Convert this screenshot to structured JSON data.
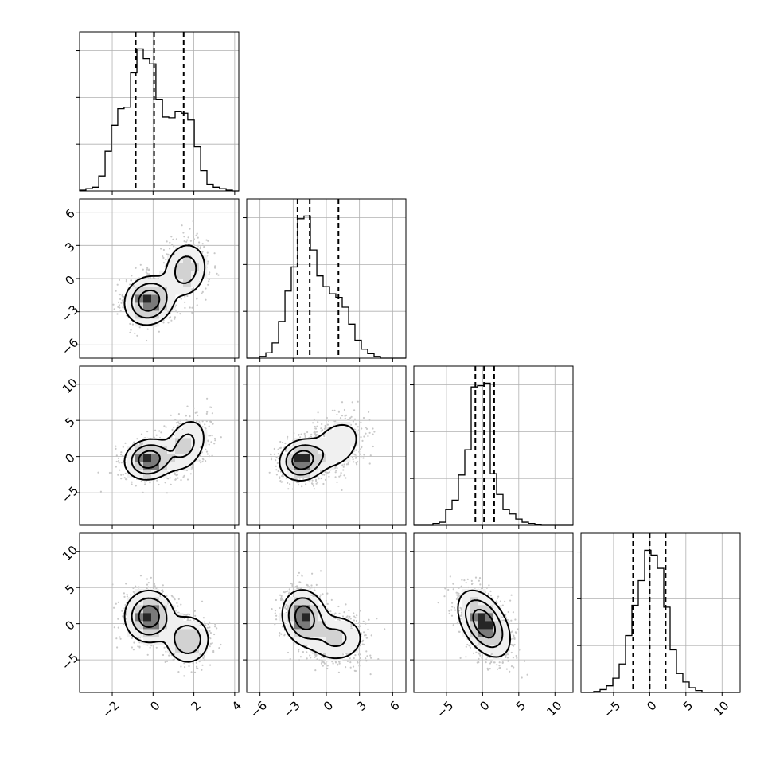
{
  "chart_data": {
    "type": "corner",
    "title": "",
    "parameters": [
      {
        "range": [
          -3.6,
          4.2
        ],
        "ticks": [
          -2,
          0,
          2,
          4
        ],
        "tick_labels": [
          "−2",
          "0",
          "2",
          "4"
        ]
      },
      {
        "range": [
          -7.2,
          7.2
        ],
        "ticks": [
          -6,
          -3,
          0,
          3,
          6
        ],
        "tick_labels": [
          "−6",
          "−3",
          "0",
          "3",
          "6"
        ]
      },
      {
        "range": [
          -9.5,
          12.5
        ],
        "ticks": [
          -5,
          0,
          5,
          10
        ],
        "tick_labels": [
          "−5",
          "0",
          "5",
          "10"
        ]
      },
      {
        "range": [
          -9.5,
          12.5
        ],
        "ticks": [
          -5,
          0,
          5,
          10
        ],
        "tick_labels": [
          "−5",
          "0",
          "5",
          "10"
        ]
      }
    ],
    "histograms": [
      {
        "param": 0,
        "quantiles": [
          -0.85,
          0.05,
          1.5
        ],
        "edges": [
          -3.6,
          -3.29,
          -2.98,
          -2.66,
          -2.35,
          -2.04,
          -1.73,
          -1.42,
          -1.1,
          -0.79,
          -0.48,
          -0.17,
          0.14,
          0.46,
          0.77,
          1.08,
          1.39,
          1.7,
          2.02,
          2.33,
          2.64,
          2.95,
          3.26,
          3.58,
          3.89,
          4.2
        ],
        "counts": [
          1,
          3,
          5,
          20,
          53,
          88,
          110,
          112,
          158,
          190,
          177,
          170,
          122,
          99,
          98,
          106,
          104,
          95,
          59,
          27,
          9,
          5,
          3,
          1,
          0
        ]
      },
      {
        "param": 1,
        "quantiles": [
          -2.6,
          -1.5,
          1.1
        ],
        "edges": [
          -7.2,
          -6.62,
          -6.05,
          -5.47,
          -4.9,
          -4.32,
          -3.74,
          -3.17,
          -2.59,
          -2.02,
          -1.44,
          -0.86,
          -0.29,
          0.29,
          0.86,
          1.44,
          2.02,
          2.59,
          3.17,
          3.74,
          4.32,
          4.9,
          5.47,
          6.05,
          6.62,
          7.2
        ],
        "counts": [
          0,
          0,
          2,
          6,
          17,
          41,
          75,
          102,
          156,
          159,
          121,
          92,
          80,
          72,
          68,
          57,
          38,
          20,
          10,
          5,
          2,
          0,
          0,
          0,
          0
        ]
      },
      {
        "param": 2,
        "quantiles": [
          -1.0,
          0.2,
          1.6
        ],
        "edges": [
          -9.5,
          -8.62,
          -7.74,
          -6.86,
          -5.98,
          -5.1,
          -4.22,
          -3.34,
          -2.46,
          -1.58,
          -0.7,
          0.18,
          1.06,
          1.94,
          2.82,
          3.7,
          4.58,
          5.46,
          6.34,
          7.22,
          8.1,
          8.98,
          9.86,
          10.74,
          11.62,
          12.5
        ],
        "counts": [
          0,
          0,
          0,
          3,
          5,
          25,
          40,
          80,
          120,
          220,
          222,
          226,
          82,
          49,
          25,
          18,
          10,
          5,
          3,
          1,
          0,
          0,
          0,
          0,
          0
        ]
      },
      {
        "param": 3,
        "quantiles": [
          -2.3,
          0.0,
          2.2
        ],
        "edges": [
          -9.5,
          -8.62,
          -7.74,
          -6.86,
          -5.98,
          -5.1,
          -4.22,
          -3.34,
          -2.46,
          -1.58,
          -0.7,
          0.18,
          1.06,
          1.94,
          2.82,
          3.7,
          4.58,
          5.46,
          6.34,
          7.22,
          8.1,
          8.98,
          9.86,
          10.74,
          11.62,
          12.5
        ],
        "counts": [
          0,
          0,
          1,
          3,
          7,
          15,
          30,
          60,
          92,
          118,
          150,
          145,
          131,
          90,
          45,
          20,
          11,
          5,
          2,
          0,
          0,
          0,
          0,
          0,
          0
        ]
      }
    ],
    "pairs": [
      {
        "x": 1,
        "y": 0,
        "modes": [
          {
            "w": 0.62,
            "mx": -0.2,
            "my": -2.0,
            "sx": 0.6,
            "sy": 1.1,
            "rho": 0.1
          },
          {
            "w": 0.38,
            "mx": 1.6,
            "my": 0.8,
            "sx": 0.55,
            "sy": 1.3,
            "rho": 0.1
          }
        ]
      },
      {
        "x": 2,
        "y": 0,
        "modes": [
          {
            "w": 0.62,
            "mx": -0.2,
            "my": -0.4,
            "sx": 0.6,
            "sy": 1.4,
            "rho": 0.1
          },
          {
            "w": 0.38,
            "mx": 1.6,
            "my": 1.6,
            "sx": 0.55,
            "sy": 2.0,
            "rho": 0.3
          }
        ]
      },
      {
        "x": 2,
        "y": 1,
        "modes": [
          {
            "w": 0.62,
            "mx": -2.2,
            "my": -0.5,
            "sx": 1.0,
            "sy": 1.4,
            "rho": 0.1
          },
          {
            "w": 0.38,
            "mx": 0.9,
            "my": 1.6,
            "sx": 1.3,
            "sy": 2.0,
            "rho": 0.3
          }
        ]
      },
      {
        "x": 3,
        "y": 0,
        "modes": [
          {
            "w": 0.62,
            "mx": -0.2,
            "my": 1.0,
            "sx": 0.6,
            "sy": 1.8,
            "rho": 0.0
          },
          {
            "w": 0.38,
            "mx": 1.7,
            "my": -2.2,
            "sx": 0.55,
            "sy": 1.7,
            "rho": 0.0
          }
        ]
      },
      {
        "x": 3,
        "y": 1,
        "modes": [
          {
            "w": 0.62,
            "mx": -2.0,
            "my": 0.9,
            "sx": 1.0,
            "sy": 1.9,
            "rho": -0.1
          },
          {
            "w": 0.38,
            "mx": 0.9,
            "my": -2.0,
            "sx": 1.4,
            "sy": 1.8,
            "rho": 0.0
          }
        ]
      },
      {
        "x": 3,
        "y": 2,
        "modes": [
          {
            "w": 1.0,
            "mx": 0.2,
            "my": 0.0,
            "sx": 1.8,
            "sy": 2.3,
            "rho": -0.45
          }
        ]
      }
    ],
    "grid": true,
    "colors": {
      "line": "#000000",
      "grid": "#b0b0b0",
      "scatter": "#c8c8c8",
      "density": "#000000"
    },
    "xlabel": "",
    "ylabel": ""
  }
}
